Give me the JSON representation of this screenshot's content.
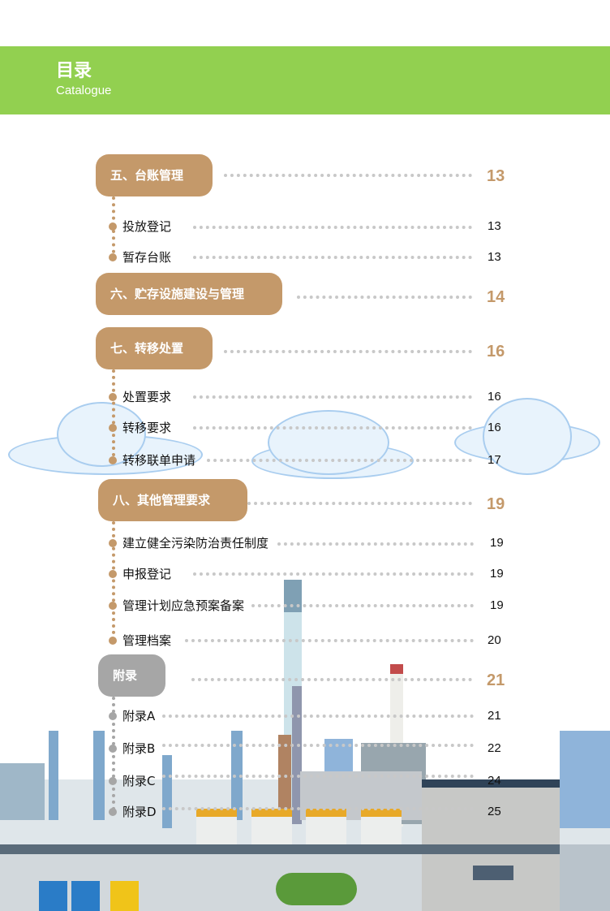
{
  "header": {
    "title": "目录",
    "subtitle": "Catalogue"
  },
  "sections": [
    {
      "title": "五、台账管理",
      "page": "13",
      "items": [
        {
          "label": "投放登记",
          "page": "13"
        },
        {
          "label": "暂存台账",
          "page": "13"
        }
      ]
    },
    {
      "title": "六、贮存设施建设与管理",
      "page": "14",
      "items": []
    },
    {
      "title": "七、转移处置",
      "page": "16",
      "items": [
        {
          "label": "处置要求",
          "page": "16"
        },
        {
          "label": "转移要求",
          "page": "16"
        },
        {
          "label": "转移联单申请",
          "page": "17"
        }
      ]
    },
    {
      "title": "八、其他管理要求",
      "page": "19",
      "items": [
        {
          "label": "建立健全污染防治责任制度",
          "page": "19"
        },
        {
          "label": "申报登记",
          "page": "19"
        },
        {
          "label": "管理计划应急预案备案",
          "page": "19"
        },
        {
          "label": "管理档案",
          "page": "20"
        }
      ]
    },
    {
      "title": "附录",
      "page": "21",
      "items": [
        {
          "label": "附录A",
          "page": "21"
        },
        {
          "label": "附录B",
          "page": "22"
        },
        {
          "label": "附录C",
          "page": "24"
        },
        {
          "label": "附录D",
          "page": "25"
        }
      ]
    }
  ],
  "colors": {
    "header_green": "#92d050",
    "section_brown": "#c4996a",
    "appendix_gray": "#a6a6a6"
  }
}
